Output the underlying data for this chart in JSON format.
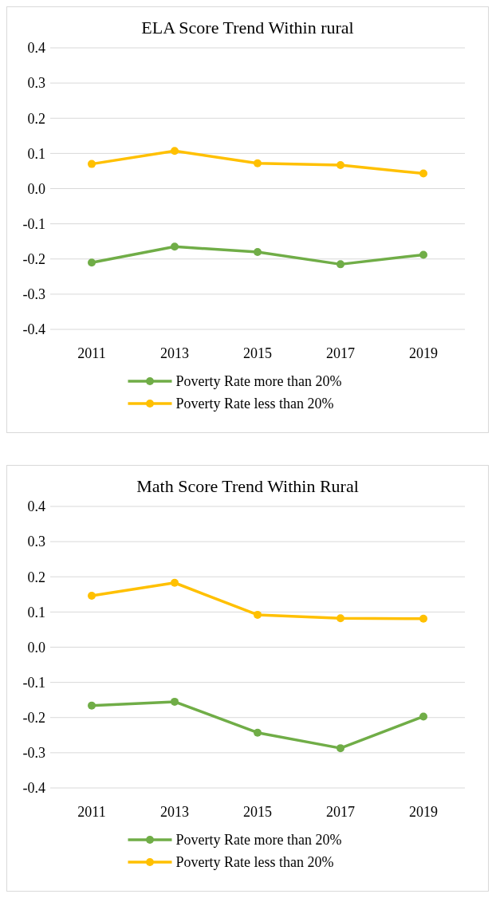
{
  "chart_data": [
    {
      "type": "line",
      "title": "ELA Score Trend Within rural",
      "categories": [
        "2011",
        "2013",
        "2015",
        "2017",
        "2019"
      ],
      "ylim": [
        -0.4,
        0.4
      ],
      "yticks": [
        -0.4,
        -0.3,
        -0.2,
        -0.1,
        {
          "value": 0,
          "label": "0.0"
        },
        0.1,
        0.2,
        0.3,
        0.4
      ],
      "grid": "y",
      "legend": "bottom",
      "marker": "circle",
      "series": [
        {
          "name": "Poverty Rate more than 20%",
          "color": "#70ad47",
          "values": [
            -0.21,
            -0.165,
            -0.18,
            -0.215,
            -0.188
          ]
        },
        {
          "name": "Poverty Rate less than 20%",
          "color": "#ffc000",
          "values": [
            0.07,
            0.107,
            0.072,
            0.067,
            0.043
          ]
        }
      ]
    },
    {
      "type": "line",
      "title": "Math Score Trend Within Rural",
      "categories": [
        "2011",
        "2013",
        "2015",
        "2017",
        "2019"
      ],
      "ylim": [
        -0.4,
        0.4
      ],
      "yticks": [
        -0.4,
        -0.3,
        -0.2,
        -0.1,
        {
          "value": 0,
          "label": "0.0"
        },
        0.1,
        0.2,
        0.3,
        0.4
      ],
      "grid": "y",
      "legend": "bottom",
      "marker": "circle",
      "series": [
        {
          "name": "Poverty Rate more than 20%",
          "color": "#70ad47",
          "values": [
            -0.166,
            -0.155,
            -0.243,
            -0.287,
            -0.197
          ]
        },
        {
          "name": "Poverty Rate less than 20%",
          "color": "#ffc000",
          "values": [
            0.146,
            0.183,
            0.092,
            0.082,
            0.081
          ]
        }
      ]
    }
  ]
}
